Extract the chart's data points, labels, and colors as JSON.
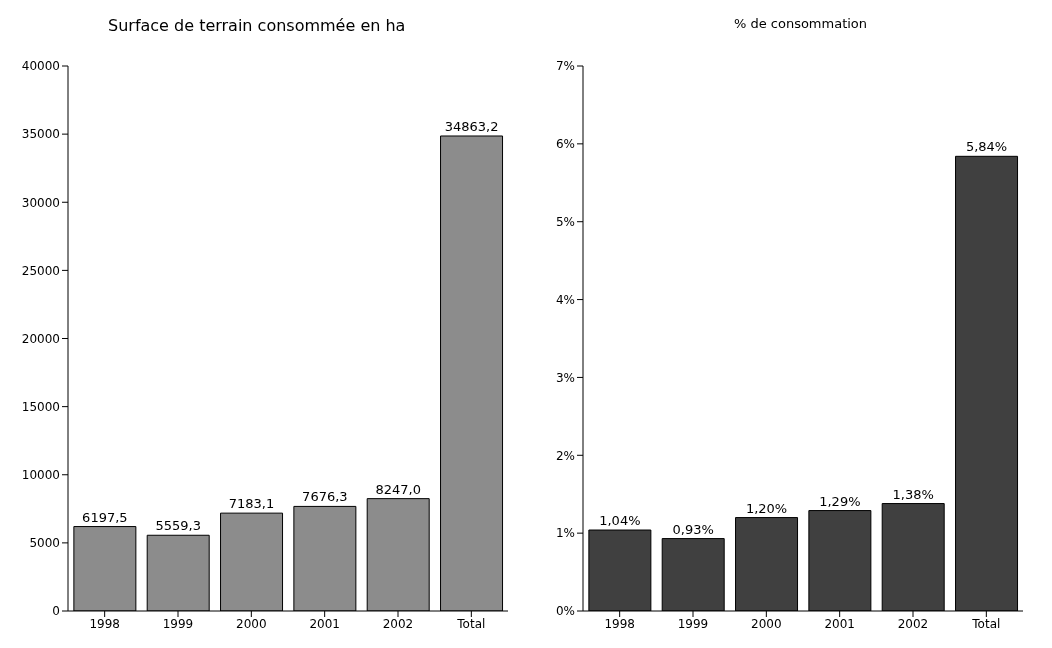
{
  "chart_data": [
    {
      "type": "bar",
      "title": "Surface de terrain consommée en ha",
      "categories": [
        "1998",
        "1999",
        "2000",
        "2001",
        "2002",
        "Total"
      ],
      "values": [
        6197.5,
        5559.3,
        7183.1,
        7676.3,
        8247.0,
        34863.2
      ],
      "color": "#8c8c8c",
      "ylim": [
        0,
        40000
      ],
      "yticks": [
        0,
        5000,
        10000,
        15000,
        20000,
        25000,
        30000,
        35000,
        40000
      ],
      "value_labels": [
        "6197,5",
        "5559,3",
        "7183,1",
        "7676,3",
        "8247,0",
        "34863,2"
      ]
    },
    {
      "type": "bar",
      "title": "% de consommation",
      "categories": [
        "1998",
        "1999",
        "2000",
        "2001",
        "2002",
        "Total"
      ],
      "values": [
        1.04,
        0.93,
        1.2,
        1.29,
        1.38,
        5.84
      ],
      "color": "#404040",
      "ylim": [
        0,
        7
      ],
      "yticks": [
        {
          "value": 0,
          "label": "0%"
        },
        {
          "value": 1,
          "label": "1%"
        },
        {
          "value": 2,
          "label": "2%"
        },
        {
          "value": 3,
          "label": "3%"
        },
        {
          "value": 4,
          "label": "4%"
        },
        {
          "value": 5,
          "label": "5%"
        },
        {
          "value": 6,
          "label": "6%"
        },
        {
          "value": 7,
          "label": "7%"
        }
      ],
      "value_labels": [
        "1,04%",
        "0,93%",
        "1,20%",
        "1,29%",
        "1,38%",
        "5,84%"
      ]
    }
  ]
}
